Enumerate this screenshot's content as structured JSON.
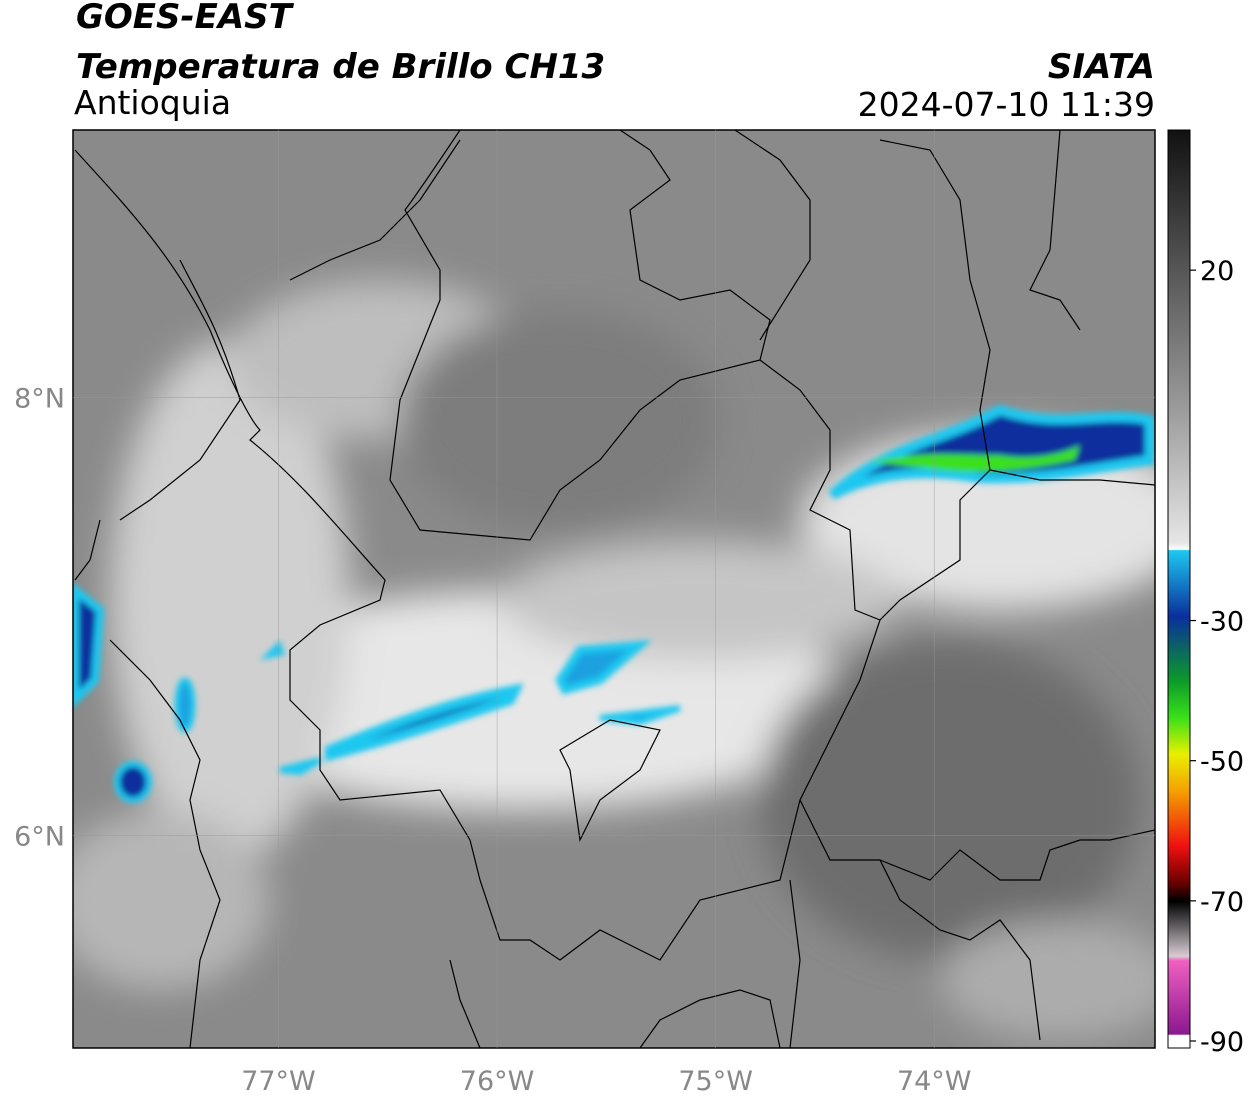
{
  "header": {
    "satellite": "GOES-EAST",
    "product": "Temperatura de Brillo CH13",
    "region": "Antioquia",
    "source": "SIATA",
    "datetime": "2024-07-10 11:39"
  },
  "map": {
    "xlim": [
      -77.94,
      -72.99
    ],
    "ylim": [
      5.03,
      9.22
    ],
    "xticks": [
      {
        "value": -77,
        "label": "77°W"
      },
      {
        "value": -76,
        "label": "76°W"
      },
      {
        "value": -75,
        "label": "75°W"
      },
      {
        "value": -74,
        "label": "74°W"
      }
    ],
    "yticks": [
      {
        "value": 6,
        "label": "6°N"
      },
      {
        "value": 8,
        "label": "8°N"
      }
    ],
    "grid": true
  },
  "colorbar": {
    "lim": [
      -91,
      40
    ],
    "ticks": [
      20,
      -30,
      -50,
      -70,
      -90
    ]
  }
}
